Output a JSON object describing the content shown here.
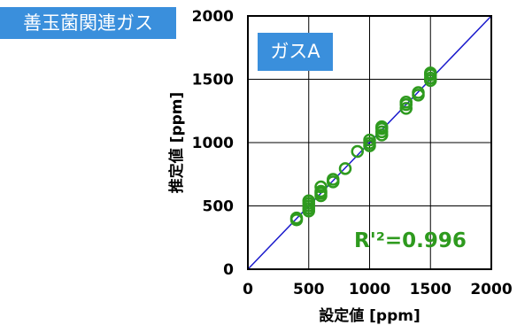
{
  "corner_label": "善玉菌関連ガス",
  "chart_data": {
    "type": "scatter",
    "title": "",
    "badge": "ガスA",
    "xlabel": "設定値 [ppm]",
    "ylabel": "推定値 [ppm]",
    "xlim": [
      0,
      2000
    ],
    "ylim": [
      0,
      2000
    ],
    "xticks": [
      "0",
      "500",
      "1000",
      "1500",
      "2000"
    ],
    "yticks": [
      "0",
      "500",
      "1000",
      "1500",
      "2000"
    ],
    "grid": true,
    "annotation": "R'²=0.996",
    "reference_line": {
      "from": [
        0,
        0
      ],
      "to": [
        2000,
        2000
      ],
      "color": "#1a1acc"
    },
    "marker_color": "#2e9a1e",
    "series": [
      {
        "points": [
          [
            400,
            390
          ],
          [
            400,
            405
          ],
          [
            500,
            460
          ],
          [
            500,
            480
          ],
          [
            500,
            500
          ],
          [
            500,
            520
          ],
          [
            500,
            540
          ],
          [
            600,
            580
          ],
          [
            600,
            600
          ],
          [
            600,
            615
          ],
          [
            600,
            650
          ],
          [
            700,
            690
          ],
          [
            700,
            710
          ],
          [
            800,
            795
          ],
          [
            900,
            930
          ],
          [
            1000,
            975
          ],
          [
            1000,
            995
          ],
          [
            1000,
            1020
          ],
          [
            1100,
            1060
          ],
          [
            1100,
            1085
          ],
          [
            1100,
            1110
          ],
          [
            1100,
            1125
          ],
          [
            1300,
            1270
          ],
          [
            1300,
            1300
          ],
          [
            1300,
            1320
          ],
          [
            1400,
            1375
          ],
          [
            1400,
            1395
          ],
          [
            1500,
            1490
          ],
          [
            1500,
            1510
          ],
          [
            1500,
            1535
          ],
          [
            1500,
            1550
          ]
        ]
      }
    ]
  }
}
